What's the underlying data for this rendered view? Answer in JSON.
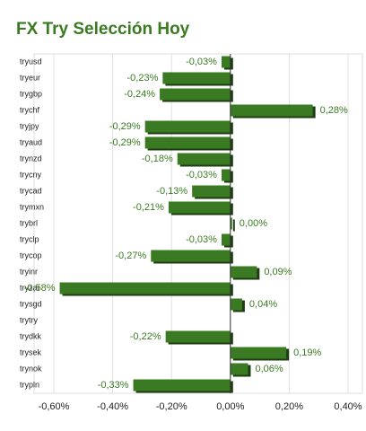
{
  "chart_data": {
    "type": "hbar",
    "title": "FX Try Selección Hoy",
    "categories": [
      "tryusd",
      "tryeur",
      "trygbp",
      "trychf",
      "tryjpy",
      "tryaud",
      "trynzd",
      "trycny",
      "trycad",
      "trymxn",
      "trybrl",
      "tryclp",
      "trycop",
      "tryinr",
      "tryzar",
      "trysgd",
      "trytry",
      "trydkk",
      "trysek",
      "trynok",
      "trypln"
    ],
    "values": [
      -0.03,
      -0.23,
      -0.24,
      0.28,
      -0.29,
      -0.29,
      -0.18,
      -0.03,
      -0.13,
      -0.21,
      0.0,
      -0.03,
      -0.27,
      0.09,
      -0.58,
      0.04,
      null,
      -0.22,
      0.19,
      0.06,
      -0.33
    ],
    "value_labels": [
      "-0,03%",
      "-0,23%",
      "-0,24%",
      "0,28%",
      "-0,29%",
      "-0,29%",
      "-0,18%",
      "-0,03%",
      "-0,13%",
      "-0,21%",
      "0,00%",
      "-0,03%",
      "-0,27%",
      "0,09%",
      "-0,58%",
      "0,04%",
      null,
      "-0,22%",
      "0,19%",
      "0,06%",
      "-0,33%"
    ],
    "color": "#3a7a22",
    "xlim": [
      -0.65,
      0.45
    ],
    "xticks": [
      {
        "value": -0.6,
        "label": "-0,60%"
      },
      {
        "value": -0.4,
        "label": "-0,40%"
      },
      {
        "value": -0.2,
        "label": "-0,20%"
      },
      {
        "value": 0,
        "label": "0,00%"
      },
      {
        "value": 0.2,
        "label": "0,20%"
      },
      {
        "value": 0.4,
        "label": "0,40%"
      }
    ],
    "grid": true
  }
}
